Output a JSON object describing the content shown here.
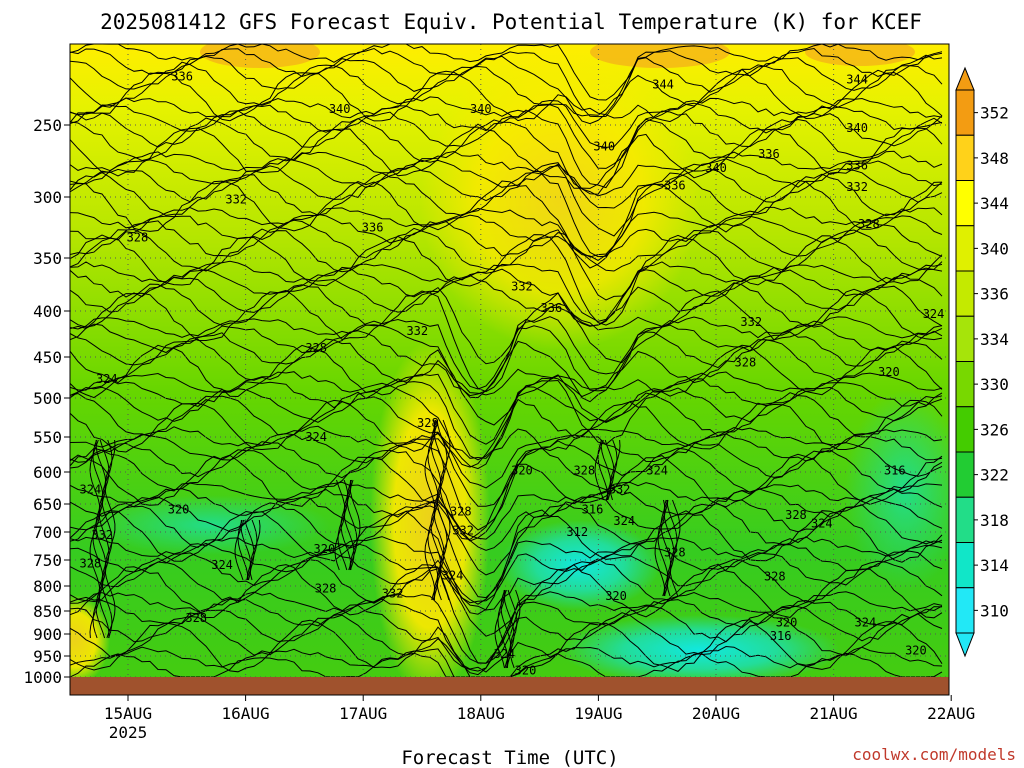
{
  "chart_data": {
    "type": "heatmap",
    "title": "2025081412 GFS Forecast Equiv. Potential Temperature (K) for KCEF",
    "xlabel": "Forecast Time (UTC)",
    "ylabel": "",
    "credit": "coolwx.com/models",
    "x_ticks": [
      {
        "label": "15AUG",
        "sub": "2025",
        "t": 0.5
      },
      {
        "label": "16AUG",
        "sub": "",
        "t": 1.5
      },
      {
        "label": "17AUG",
        "sub": "",
        "t": 2.5
      },
      {
        "label": "18AUG",
        "sub": "",
        "t": 3.5
      },
      {
        "label": "19AUG",
        "sub": "",
        "t": 4.5
      },
      {
        "label": "20AUG",
        "sub": "",
        "t": 5.5
      },
      {
        "label": "21AUG",
        "sub": "",
        "t": 6.5
      },
      {
        "label": "22AUG",
        "sub": "",
        "t": 7.5
      }
    ],
    "x_range_days": [
      0,
      7.5
    ],
    "y_ticks": [
      {
        "label": "250",
        "p": 250
      },
      {
        "label": "300",
        "p": 300
      },
      {
        "label": "350",
        "p": 350
      },
      {
        "label": "400",
        "p": 400
      },
      {
        "label": "450",
        "p": 450
      },
      {
        "label": "500",
        "p": 500
      },
      {
        "label": "550",
        "p": 550
      },
      {
        "label": "600",
        "p": 600
      },
      {
        "label": "650",
        "p": 650
      },
      {
        "label": "700",
        "p": 700
      },
      {
        "label": "750",
        "p": 750
      },
      {
        "label": "800",
        "p": 800
      },
      {
        "label": "850",
        "p": 850
      },
      {
        "label": "900",
        "p": 900
      },
      {
        "label": "950",
        "p": 950
      },
      {
        "label": "1000",
        "p": 1000
      }
    ],
    "y_range_hpa": [
      200,
      1000
    ],
    "y_scale": "log-pressure",
    "grid": true,
    "colorbar": {
      "labels": [
        "352",
        "348",
        "344",
        "340",
        "336",
        "334",
        "330",
        "326",
        "322",
        "318",
        "314",
        "310"
      ],
      "colors": [
        "#f39c12",
        "#ffd21a",
        "#ffff00",
        "#e0f000",
        "#c4ea00",
        "#a6e40a",
        "#78d800",
        "#44cc00",
        "#22cc33",
        "#22dd88",
        "#11e6c8",
        "#22e8f6"
      ],
      "extend": "both"
    },
    "contour_interval_K": 4,
    "contour_labels": [
      {
        "v": "336",
        "t": 0.96,
        "p": 220
      },
      {
        "v": "340",
        "t": 2.3,
        "p": 240
      },
      {
        "v": "340",
        "t": 3.5,
        "p": 240
      },
      {
        "v": "344",
        "t": 5.05,
        "p": 225
      },
      {
        "v": "344",
        "t": 6.7,
        "p": 222
      },
      {
        "v": "340",
        "t": 4.55,
        "p": 265
      },
      {
        "v": "340",
        "t": 5.5,
        "p": 280
      },
      {
        "v": "340",
        "t": 6.7,
        "p": 252
      },
      {
        "v": "336",
        "t": 5.95,
        "p": 270
      },
      {
        "v": "336",
        "t": 6.7,
        "p": 278
      },
      {
        "v": "332",
        "t": 6.7,
        "p": 293
      },
      {
        "v": "328",
        "t": 6.8,
        "p": 322
      },
      {
        "v": "336",
        "t": 5.15,
        "p": 292
      },
      {
        "v": "332",
        "t": 1.42,
        "p": 302
      },
      {
        "v": "336",
        "t": 2.58,
        "p": 325
      },
      {
        "v": "328",
        "t": 0.58,
        "p": 333
      },
      {
        "v": "332",
        "t": 3.85,
        "p": 377
      },
      {
        "v": "336",
        "t": 4.1,
        "p": 397
      },
      {
        "v": "332",
        "t": 2.96,
        "p": 422
      },
      {
        "v": "332",
        "t": 5.8,
        "p": 412
      },
      {
        "v": "324",
        "t": 7.35,
        "p": 403
      },
      {
        "v": "328",
        "t": 2.1,
        "p": 440
      },
      {
        "v": "328",
        "t": 5.75,
        "p": 457
      },
      {
        "v": "320",
        "t": 6.97,
        "p": 468
      },
      {
        "v": "324",
        "t": 0.32,
        "p": 477
      },
      {
        "v": "328",
        "t": 3.05,
        "p": 532
      },
      {
        "v": "324",
        "t": 2.1,
        "p": 550
      },
      {
        "v": "320",
        "t": 3.85,
        "p": 598
      },
      {
        "v": "328",
        "t": 4.38,
        "p": 598
      },
      {
        "v": "324",
        "t": 5.0,
        "p": 598
      },
      {
        "v": "316",
        "t": 7.02,
        "p": 598
      },
      {
        "v": "324",
        "t": 0.18,
        "p": 627
      },
      {
        "v": "332",
        "t": 4.68,
        "p": 627
      },
      {
        "v": "328",
        "t": 3.33,
        "p": 663
      },
      {
        "v": "320",
        "t": 0.93,
        "p": 660
      },
      {
        "v": "316",
        "t": 4.45,
        "p": 660
      },
      {
        "v": "328",
        "t": 6.18,
        "p": 670
      },
      {
        "v": "324",
        "t": 4.72,
        "p": 680
      },
      {
        "v": "324",
        "t": 6.4,
        "p": 685
      },
      {
        "v": "332",
        "t": 0.28,
        "p": 705
      },
      {
        "v": "312",
        "t": 4.32,
        "p": 700
      },
      {
        "v": "332",
        "t": 3.35,
        "p": 697
      },
      {
        "v": "320",
        "t": 2.17,
        "p": 730
      },
      {
        "v": "328",
        "t": 0.18,
        "p": 757
      },
      {
        "v": "324",
        "t": 1.3,
        "p": 760
      },
      {
        "v": "328",
        "t": 5.15,
        "p": 737
      },
      {
        "v": "324",
        "t": 3.26,
        "p": 780
      },
      {
        "v": "328",
        "t": 2.18,
        "p": 805
      },
      {
        "v": "328",
        "t": 6.0,
        "p": 782
      },
      {
        "v": "332",
        "t": 2.75,
        "p": 815
      },
      {
        "v": "320",
        "t": 4.65,
        "p": 820
      },
      {
        "v": "328",
        "t": 1.08,
        "p": 865
      },
      {
        "v": "320",
        "t": 6.1,
        "p": 875
      },
      {
        "v": "324",
        "t": 6.77,
        "p": 875
      },
      {
        "v": "316",
        "t": 6.05,
        "p": 905
      },
      {
        "v": "324",
        "t": 3.7,
        "p": 945
      },
      {
        "v": "320",
        "t": 7.2,
        "p": 937
      },
      {
        "v": "320",
        "t": 3.88,
        "p": 985
      }
    ]
  }
}
